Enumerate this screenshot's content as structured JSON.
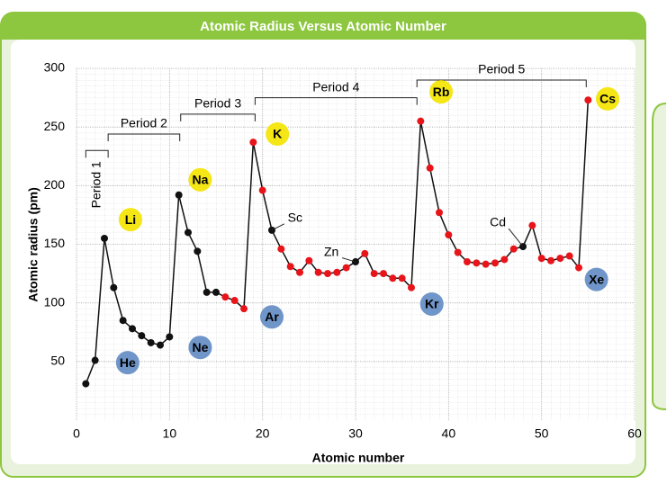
{
  "chart_data": {
    "type": "line",
    "title": "Atomic Radius Versus Atomic Number",
    "x_label": "Atomic number",
    "y_label": "Atomic radius (pm)",
    "x": [
      1,
      2,
      3,
      4,
      5,
      6,
      7,
      8,
      9,
      10,
      11,
      12,
      13,
      14,
      15,
      16,
      17,
      18,
      19,
      20,
      21,
      22,
      23,
      24,
      25,
      26,
      27,
      28,
      29,
      30,
      31,
      32,
      33,
      34,
      35,
      36,
      37,
      38,
      39,
      40,
      41,
      42,
      43,
      44,
      45,
      46,
      47,
      48,
      49,
      50,
      51,
      52,
      53,
      54,
      55
    ],
    "series": [
      {
        "color": "#111111",
        "values": [
          31,
          51,
          155,
          113,
          85,
          78,
          72,
          66,
          64,
          71,
          192,
          160,
          144,
          109,
          109,
          105,
          102,
          95,
          237,
          196,
          162,
          146,
          131,
          126,
          136,
          126,
          125,
          126,
          130,
          135,
          142,
          125,
          125,
          121,
          121,
          113,
          255,
          215,
          177,
          158,
          143,
          135,
          134,
          133,
          134,
          137,
          146,
          148,
          166,
          138,
          136,
          138,
          140,
          130,
          273
        ],
        "point_colors": [
          "#111111",
          "#111111",
          "#111111",
          "#111111",
          "#111111",
          "#111111",
          "#111111",
          "#111111",
          "#111111",
          "#111111",
          "#111111",
          "#111111",
          "#111111",
          "#111111",
          "#111111",
          "#e8141a",
          "#e8141a",
          "#e8141a",
          "#e8141a",
          "#e8141a",
          "#111111",
          "#e8141a",
          "#e8141a",
          "#e8141a",
          "#e8141a",
          "#e8141a",
          "#e8141a",
          "#e8141a",
          "#e8141a",
          "#111111",
          "#e8141a",
          "#e8141a",
          "#e8141a",
          "#e8141a",
          "#e8141a",
          "#e8141a",
          "#e8141a",
          "#e8141a",
          "#e8141a",
          "#e8141a",
          "#e8141a",
          "#e8141a",
          "#e8141a",
          "#e8141a",
          "#e8141a",
          "#e8141a",
          "#e8141a",
          "#111111",
          "#e8141a",
          "#e8141a",
          "#e8141a",
          "#e8141a",
          "#e8141a",
          "#e8141a",
          "#e8141a"
        ]
      }
    ],
    "xlim": [
      0,
      60
    ],
    "ylim": [
      0,
      300
    ],
    "xticks": [
      0,
      10,
      20,
      30,
      40,
      50,
      60
    ],
    "yticks": [
      50,
      100,
      150,
      200,
      250,
      300
    ],
    "grid": true,
    "periods": [
      {
        "label": "Period 1",
        "from": 1,
        "to": 3.4,
        "y": 230,
        "vertical": true
      },
      {
        "label": "Period 2",
        "from": 3.4,
        "to": 11.1,
        "y": 244
      },
      {
        "label": "Period 3",
        "from": 11.2,
        "to": 19.2,
        "y": 261
      },
      {
        "label": "Period 4",
        "from": 19.2,
        "to": 36.6,
        "y": 275
      },
      {
        "label": "Period 5",
        "from": 36.6,
        "to": 54.8,
        "y": 290
      }
    ],
    "element_labels": [
      {
        "text": "Li",
        "x": 5.8,
        "y": 171,
        "color": "#f5e616"
      },
      {
        "text": "Na",
        "x": 13.3,
        "y": 205,
        "color": "#f5e616"
      },
      {
        "text": "K",
        "x": 21.6,
        "y": 244,
        "color": "#f5e616"
      },
      {
        "text": "Rb",
        "x": 39.2,
        "y": 280,
        "color": "#f5e616"
      },
      {
        "text": "Cs",
        "x": 57.1,
        "y": 274,
        "color": "#f5e616"
      },
      {
        "text": "He",
        "x": 5.5,
        "y": 49,
        "color": "#6f95c9"
      },
      {
        "text": "Ne",
        "x": 13.3,
        "y": 62,
        "color": "#6f95c9"
      },
      {
        "text": "Ar",
        "x": 21,
        "y": 88,
        "color": "#6f95c9"
      },
      {
        "text": "Kr",
        "x": 38.2,
        "y": 99,
        "color": "#6f95c9"
      },
      {
        "text": "Xe",
        "x": 55.9,
        "y": 120,
        "color": "#6f95c9"
      }
    ],
    "annotations": [
      {
        "text": "Sc",
        "x": 23.5,
        "y": 172,
        "point": 20
      },
      {
        "text": "Zn",
        "x": 27.4,
        "y": 143,
        "point": 29
      },
      {
        "text": "Cd",
        "x": 45.3,
        "y": 168,
        "point": 47
      }
    ]
  }
}
